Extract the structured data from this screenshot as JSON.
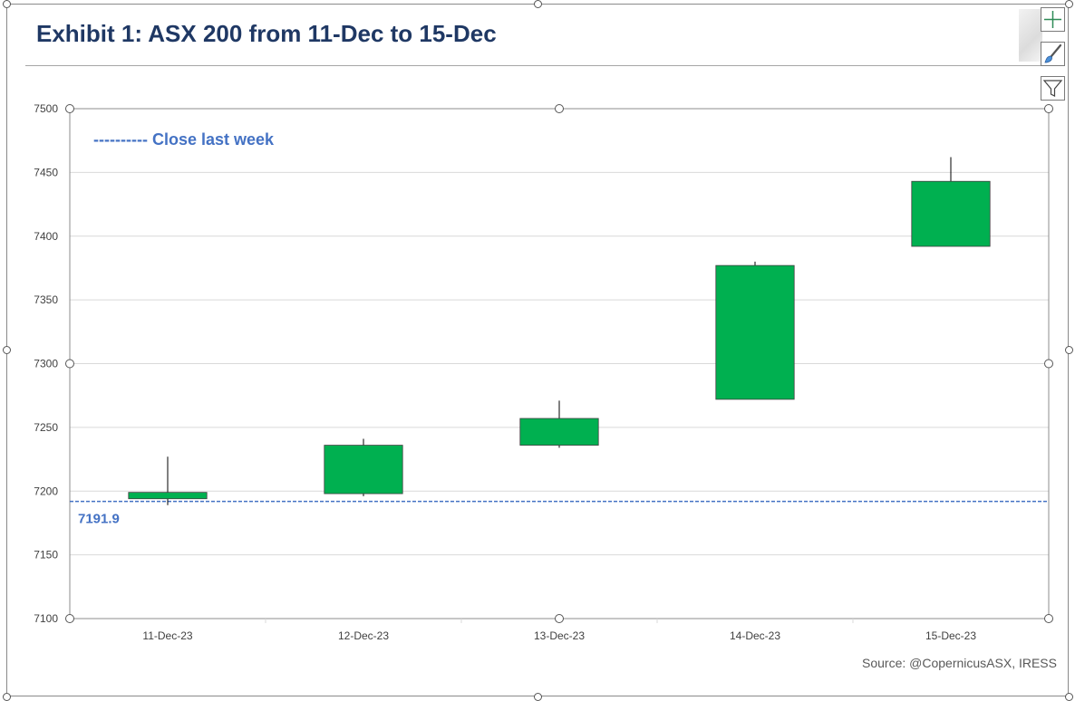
{
  "title": "Exhibit 1: ASX 200 from 11-Dec to 15-Dec",
  "source": "Source: @CopernicusASX, IRESS",
  "icons": [
    "add-chart-element-icon",
    "chart-styles-brush-icon",
    "chart-filter-icon"
  ],
  "chart_data": {
    "type": "candlestick",
    "categories": [
      "11-Dec-23",
      "12-Dec-23",
      "13-Dec-23",
      "14-Dec-23",
      "15-Dec-23"
    ],
    "series": [
      {
        "open": 7194,
        "high": 7227,
        "low": 7189,
        "close": 7199
      },
      {
        "open": 7198,
        "high": 7241,
        "low": 7196,
        "close": 7236
      },
      {
        "open": 7236,
        "high": 7271,
        "low": 7234,
        "close": 7257
      },
      {
        "open": 7272,
        "high": 7380,
        "low": 7272,
        "close": 7377
      },
      {
        "open": 7392,
        "high": 7462,
        "low": 7392,
        "close": 7443
      }
    ],
    "ylim": [
      7100,
      7500
    ],
    "yticks": [
      7100,
      7150,
      7200,
      7250,
      7300,
      7350,
      7400,
      7450,
      7500
    ],
    "reference_line": {
      "value": 7191.9,
      "label": "7191.9",
      "legend": "---------- Close last week"
    },
    "grid": true,
    "colors": {
      "candle_up": "#00b050",
      "reference": "#4472c4",
      "grid": "#d9d9d9",
      "axis": "#8c8c8c",
      "title": "#1f3864"
    }
  }
}
